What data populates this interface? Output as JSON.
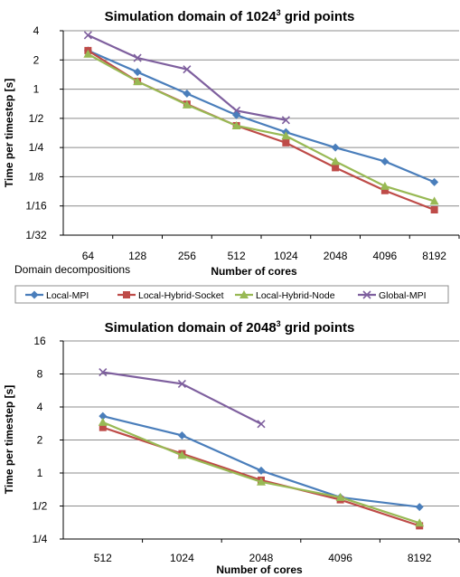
{
  "colors": {
    "Local-MPI": "#4a7ebb",
    "Local-Hybrid-Socket": "#be4b48",
    "Local-Hybrid-Node": "#98b954",
    "Global-MPI": "#7e5f9e"
  },
  "legend": {
    "items": [
      {
        "name": "Local-MPI",
        "marker": "diamond"
      },
      {
        "name": "Local-Hybrid-Socket",
        "marker": "square"
      },
      {
        "name": "Local-Hybrid-Node",
        "marker": "triangle"
      },
      {
        "name": "Global-MPI",
        "marker": "x"
      }
    ]
  },
  "chart1_note": "Domain  decompositions",
  "chart_data": [
    {
      "type": "line",
      "title_prefix": "Simulation domain of 1024",
      "title_sup": "3",
      "title_suffix": " grid points",
      "xlabel": "Number of cores",
      "ylabel": "Time per timestep [s]",
      "yscale": "log2",
      "grid": true,
      "categories": [
        "64",
        "128",
        "256",
        "512",
        "1024",
        "2048",
        "4096",
        "8192"
      ],
      "y_ticks": [
        {
          "label": "4",
          "value": 4
        },
        {
          "label": "2",
          "value": 2
        },
        {
          "label": "1",
          "value": 1
        },
        {
          "label": "1/2",
          "value": 0.5
        },
        {
          "label": "1/4",
          "value": 0.25
        },
        {
          "label": "1/8",
          "value": 0.125
        },
        {
          "label": "1/16",
          "value": 0.0625
        },
        {
          "label": "1/32",
          "value": 0.03125
        }
      ],
      "ylim": [
        0.03125,
        4
      ],
      "series": [
        {
          "name": "Local-MPI",
          "values": [
            2.5,
            1.5,
            0.9,
            0.54,
            0.36,
            0.25,
            0.18,
            0.11
          ]
        },
        {
          "name": "Local-Hybrid-Socket",
          "values": [
            2.5,
            1.2,
            0.7,
            0.42,
            0.28,
            0.155,
            0.09,
            0.057
          ]
        },
        {
          "name": "Local-Hybrid-Node",
          "values": [
            2.3,
            1.2,
            0.69,
            0.42,
            0.33,
            0.18,
            0.1,
            0.07
          ]
        },
        {
          "name": "Global-MPI",
          "values": [
            3.6,
            2.1,
            1.6,
            0.6,
            0.48,
            null,
            null,
            null
          ]
        }
      ]
    },
    {
      "type": "line",
      "title_prefix": "Simulation domain of 2048",
      "title_sup": "3",
      "title_suffix": " grid points",
      "xlabel": "Number of cores",
      "ylabel": "Time per timestep [s]",
      "yscale": "log2",
      "grid": true,
      "categories": [
        "512",
        "1024",
        "2048",
        "4096",
        "8192"
      ],
      "y_ticks": [
        {
          "label": "16",
          "value": 16
        },
        {
          "label": "8",
          "value": 8
        },
        {
          "label": "4",
          "value": 4
        },
        {
          "label": "2",
          "value": 2
        },
        {
          "label": "1",
          "value": 1
        },
        {
          "label": "1/2",
          "value": 0.5
        },
        {
          "label": "1/4",
          "value": 0.25
        }
      ],
      "ylim": [
        0.25,
        16
      ],
      "series": [
        {
          "name": "Local-MPI",
          "values": [
            3.3,
            2.2,
            1.05,
            0.6,
            0.49
          ]
        },
        {
          "name": "Local-Hybrid-Socket",
          "values": [
            2.6,
            1.5,
            0.86,
            0.57,
            0.33
          ]
        },
        {
          "name": "Local-Hybrid-Node",
          "values": [
            2.9,
            1.45,
            0.83,
            0.6,
            0.35
          ]
        },
        {
          "name": "Global-MPI",
          "values": [
            8.3,
            6.5,
            2.8,
            null,
            null
          ]
        }
      ]
    }
  ]
}
